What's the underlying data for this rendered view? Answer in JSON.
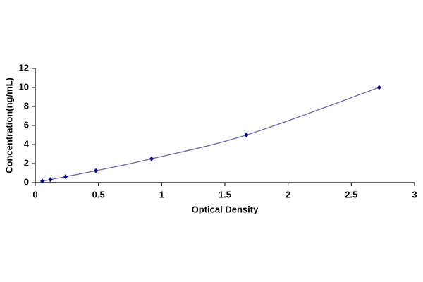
{
  "chart_data": {
    "type": "scatter",
    "x_label": "Optical Density",
    "y_label": "Concentration(ng/mL)",
    "x": [
      0.056,
      0.12,
      0.24,
      0.48,
      0.92,
      1.67,
      2.72
    ],
    "values": [
      0.156,
      0.312,
      0.625,
      1.25,
      2.5,
      5,
      10
    ],
    "color": "#000080",
    "line_color": "#6a6aa8",
    "line": true,
    "xlim": [
      0,
      3
    ],
    "xticks": [
      0,
      0.5,
      1,
      1.5,
      2,
      2.5,
      3
    ],
    "ylim": [
      0,
      12
    ],
    "yticks": [
      0,
      2,
      4,
      6,
      8,
      10,
      12
    ],
    "grid": false
  }
}
